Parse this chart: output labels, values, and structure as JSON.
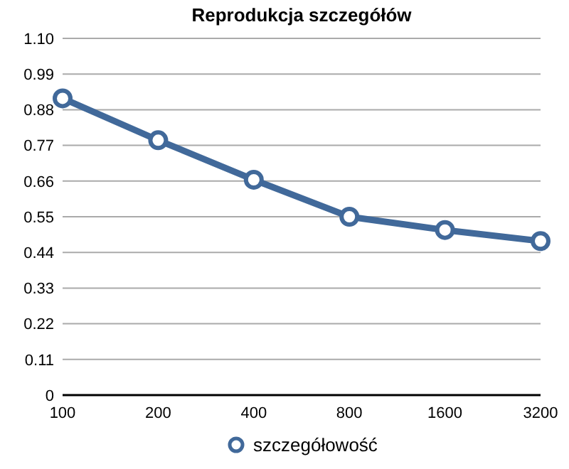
{
  "chart_data": {
    "type": "line",
    "title": "Reprodukcja szczegółów",
    "categories": [
      "100",
      "200",
      "400",
      "800",
      "1600",
      "3200"
    ],
    "series": [
      {
        "name": "szczegółowość",
        "color": "#41699a",
        "values": [
          0.915,
          0.786,
          0.664,
          0.55,
          0.509,
          0.475
        ]
      }
    ],
    "ylim": [
      0,
      1.1
    ],
    "yticks": [
      {
        "value": 0,
        "label": "0"
      },
      {
        "value": 0.11,
        "label": "0.11"
      },
      {
        "value": 0.22,
        "label": "0.22"
      },
      {
        "value": 0.33,
        "label": "0.33"
      },
      {
        "value": 0.44,
        "label": "0.44"
      },
      {
        "value": 0.55,
        "label": "0.55"
      },
      {
        "value": 0.66,
        "label": "0.66"
      },
      {
        "value": 0.77,
        "label": "0.77"
      },
      {
        "value": 0.88,
        "label": "0.88"
      },
      {
        "value": 0.99,
        "label": "0.99"
      },
      {
        "value": 1.1,
        "label": "1.10"
      }
    ],
    "grid": "y",
    "legend": "bottom",
    "marker": "circle",
    "line_style": "solid"
  }
}
